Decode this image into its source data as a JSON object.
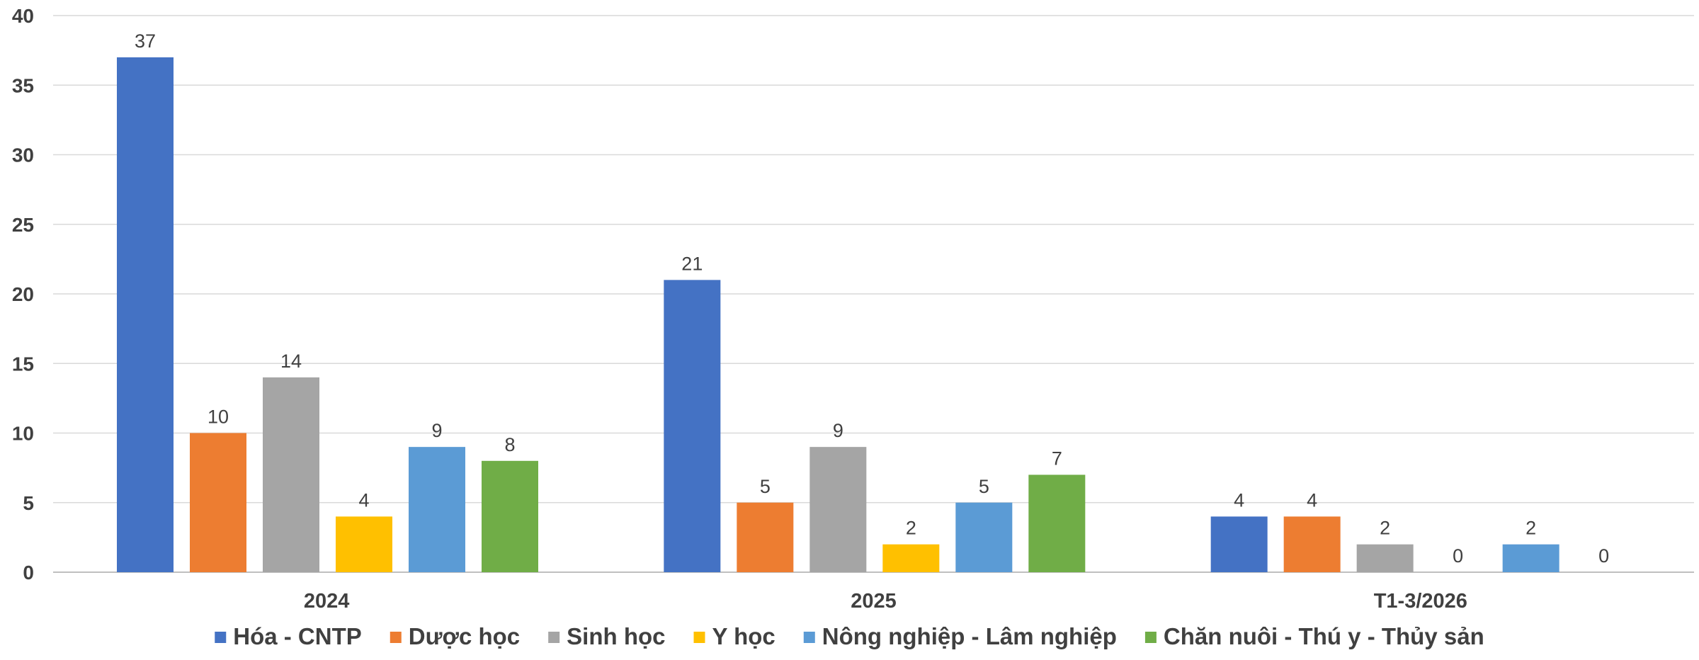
{
  "chart_data": {
    "type": "bar",
    "title": "",
    "xlabel": "",
    "ylabel": "",
    "categories": [
      "2024",
      "2025",
      "T1-3/2026"
    ],
    "ylim": [
      0,
      40
    ],
    "yticks": [
      0,
      5,
      10,
      15,
      20,
      25,
      30,
      35,
      40
    ],
    "grid": true,
    "legend_position": "bottom",
    "data_labels": true,
    "series": [
      {
        "name": "Hóa - CNTP",
        "color": "#4472C4",
        "values": [
          37,
          21,
          4
        ]
      },
      {
        "name": "Dược học",
        "color": "#ED7D31",
        "values": [
          10,
          5,
          4
        ]
      },
      {
        "name": "Sinh học",
        "color": "#A5A5A5",
        "values": [
          14,
          9,
          2
        ]
      },
      {
        "name": "Y học",
        "color": "#FFC000",
        "values": [
          4,
          2,
          0
        ]
      },
      {
        "name": "Nông nghiệp - Lâm nghiệp",
        "color": "#5B9BD5",
        "values": [
          9,
          5,
          2
        ]
      },
      {
        "name": "Chăn nuôi - Thú y - Thủy sản",
        "color": "#70AD47",
        "values": [
          8,
          7,
          0
        ]
      }
    ]
  }
}
